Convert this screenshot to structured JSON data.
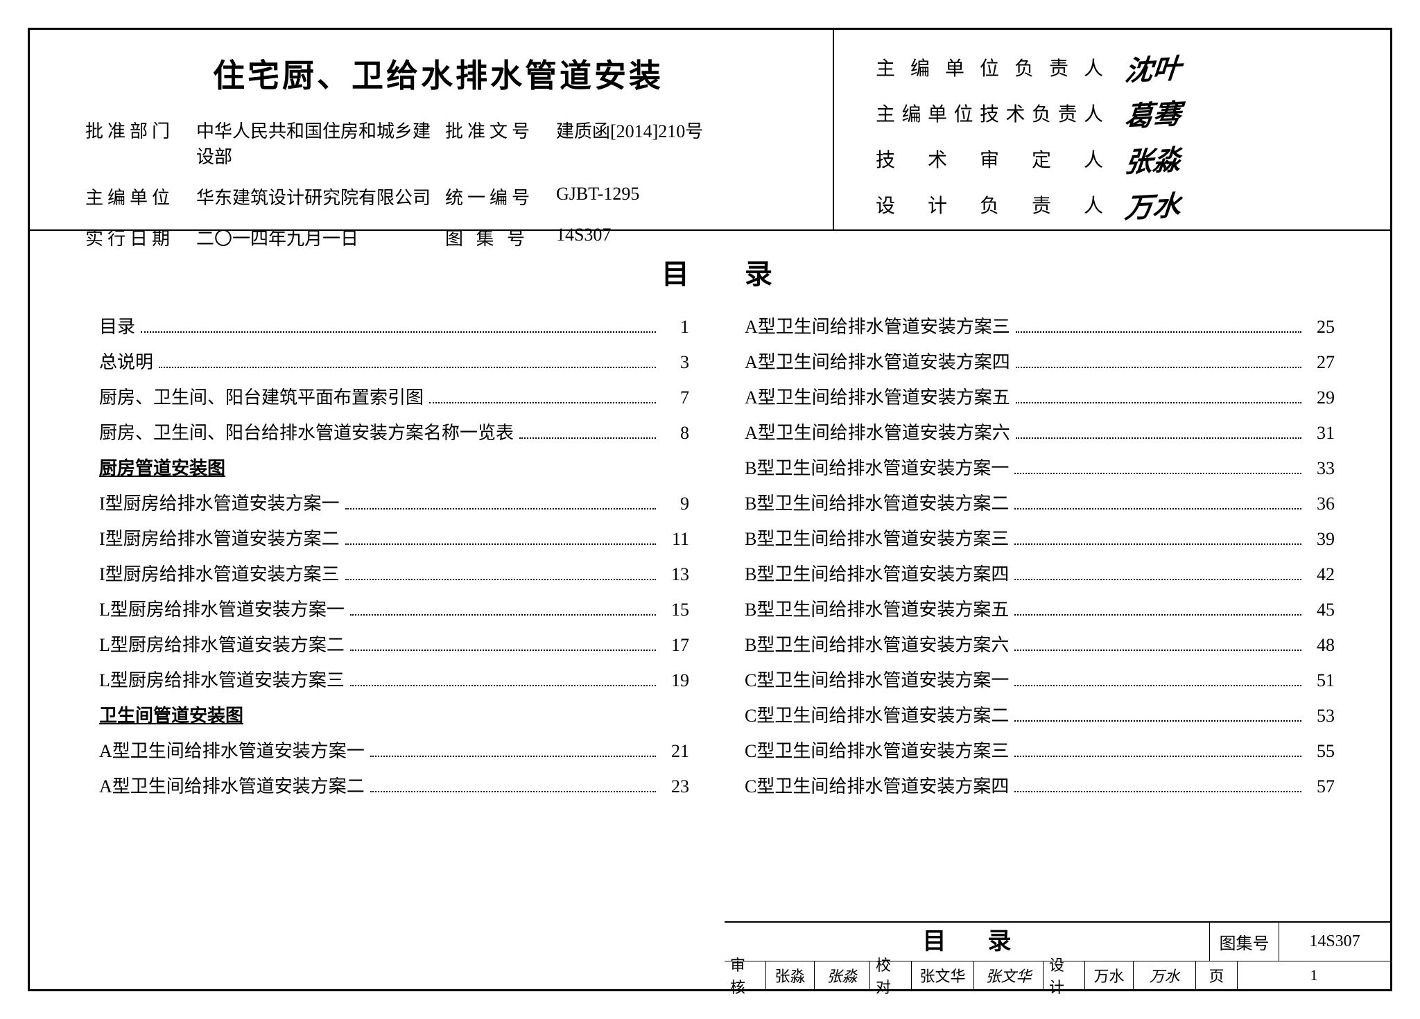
{
  "header": {
    "title": "住宅厨、卫给水排水管道安装",
    "left": [
      {
        "label": "批准部门",
        "value": "中华人民共和国住房和城乡建设部"
      },
      {
        "label2": "批准文号",
        "value2": "建质函[2014]210号"
      },
      {
        "label": "主编单位",
        "value": "华东建筑设计研究院有限公司"
      },
      {
        "label2": "统一编号",
        "value2": "GJBT-1295"
      },
      {
        "label": "实行日期",
        "value": "二〇一四年九月一日"
      },
      {
        "label2": "图 集 号",
        "value2": "14S307"
      }
    ],
    "signatures": [
      {
        "label": "主编单位负责人",
        "sig": "沈叶"
      },
      {
        "label": "主编单位技术负责人",
        "sig": "葛骞"
      },
      {
        "label": "技术审定人",
        "sig": "张淼"
      },
      {
        "label": "设计负责人",
        "sig": "万水"
      }
    ]
  },
  "toc": {
    "heading": "目录",
    "left_col": [
      {
        "text": "目录",
        "page": "1"
      },
      {
        "text": "总说明",
        "page": "3"
      },
      {
        "text": "厨房、卫生间、阳台建筑平面布置索引图",
        "page": "7"
      },
      {
        "text": "厨房、卫生间、阳台给排水管道安装方案名称一览表",
        "page": "8"
      },
      {
        "heading": "厨房管道安装图"
      },
      {
        "text": "I型厨房给排水管道安装方案一",
        "page": "9"
      },
      {
        "text": "I型厨房给排水管道安装方案二",
        "page": "11"
      },
      {
        "text": "I型厨房给排水管道安装方案三",
        "page": "13"
      },
      {
        "text": "L型厨房给排水管道安装方案一",
        "page": "15"
      },
      {
        "text": "L型厨房给排水管道安装方案二",
        "page": "17"
      },
      {
        "text": "L型厨房给排水管道安装方案三",
        "page": "19"
      },
      {
        "heading": "卫生间管道安装图"
      },
      {
        "text": "A型卫生间给排水管道安装方案一",
        "page": "21"
      },
      {
        "text": "A型卫生间给排水管道安装方案二",
        "page": "23"
      }
    ],
    "right_col": [
      {
        "text": "A型卫生间给排水管道安装方案三",
        "page": "25"
      },
      {
        "text": "A型卫生间给排水管道安装方案四",
        "page": "27"
      },
      {
        "text": "A型卫生间给排水管道安装方案五",
        "page": "29"
      },
      {
        "text": "A型卫生间给排水管道安装方案六",
        "page": "31"
      },
      {
        "text": "B型卫生间给排水管道安装方案一",
        "page": "33"
      },
      {
        "text": "B型卫生间给排水管道安装方案二",
        "page": "36"
      },
      {
        "text": "B型卫生间给排水管道安装方案三",
        "page": "39"
      },
      {
        "text": "B型卫生间给排水管道安装方案四",
        "page": "42"
      },
      {
        "text": "B型卫生间给排水管道安装方案五",
        "page": "45"
      },
      {
        "text": "B型卫生间给排水管道安装方案六",
        "page": "48"
      },
      {
        "text": "C型卫生间给排水管道安装方案一",
        "page": "51"
      },
      {
        "text": "C型卫生间给排水管道安装方案二",
        "page": "53"
      },
      {
        "text": "C型卫生间给排水管道安装方案三",
        "page": "55"
      },
      {
        "text": "C型卫生间给排水管道安装方案四",
        "page": "57"
      }
    ]
  },
  "footer": {
    "top_title": "目录",
    "atlas_label": "图集号",
    "atlas_value": "14S307",
    "bottom": [
      {
        "t": "审核"
      },
      {
        "t": "张淼",
        "s": false
      },
      {
        "t": "张淼",
        "s": true
      },
      {
        "t": "校对"
      },
      {
        "t": "张文华",
        "s": false
      },
      {
        "t": "张文华",
        "s": true
      },
      {
        "t": "设计"
      },
      {
        "t": "万水",
        "s": false
      },
      {
        "t": "万水",
        "s": true
      },
      {
        "t": "页"
      },
      {
        "t": "1"
      }
    ]
  }
}
